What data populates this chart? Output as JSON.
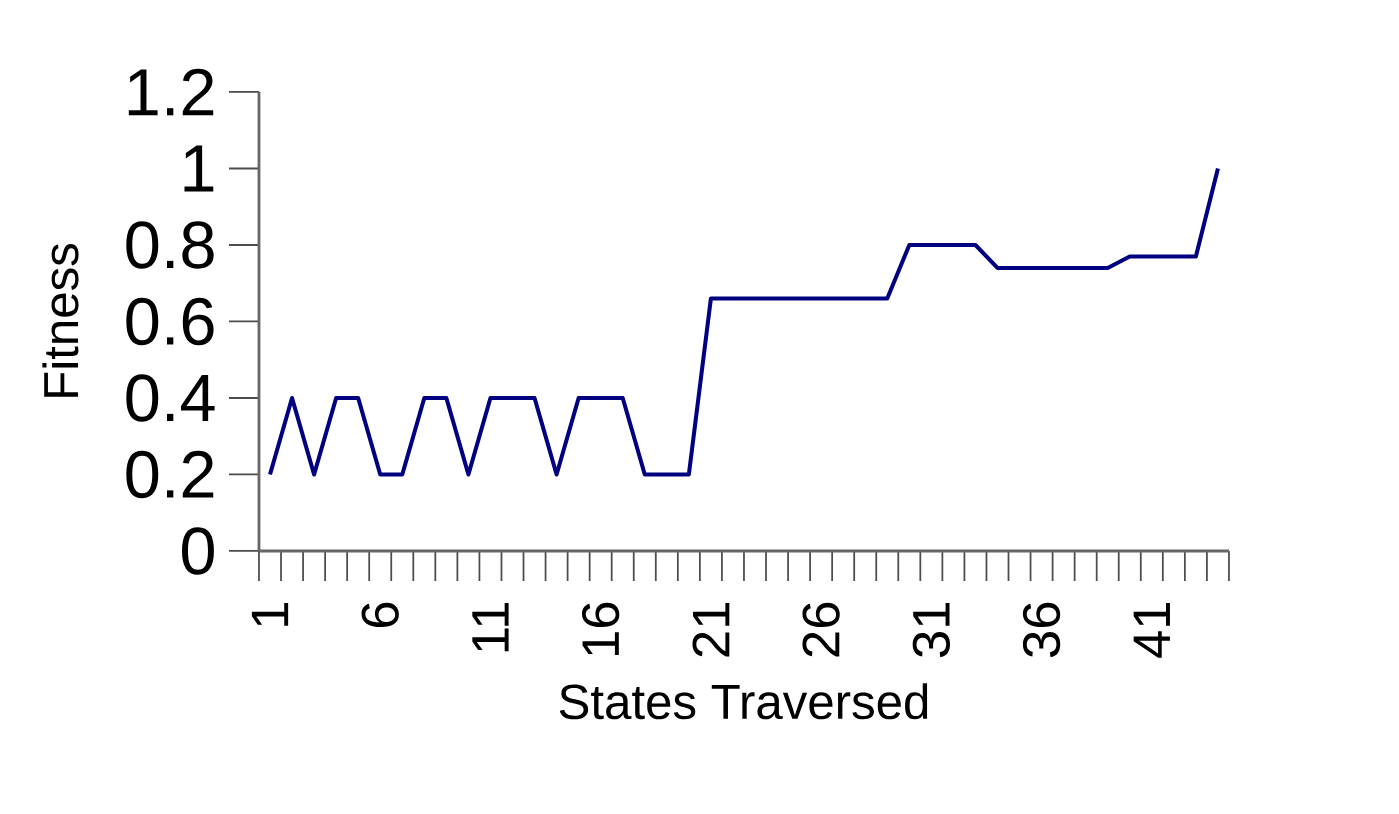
{
  "chart_data": {
    "type": "line",
    "xlabel": "States Traversed",
    "ylabel": "Fitness",
    "categories": [
      "1",
      null,
      null,
      null,
      null,
      "6",
      null,
      null,
      null,
      null,
      "11",
      null,
      null,
      null,
      null,
      "16",
      null,
      null,
      null,
      null,
      "21",
      null,
      null,
      null,
      null,
      "26",
      null,
      null,
      null,
      null,
      "31",
      null,
      null,
      null,
      null,
      "36",
      null,
      null,
      null,
      null,
      "41",
      null,
      null,
      null
    ],
    "series": [
      {
        "color": "#000080",
        "values": [
          0.2,
          0.4,
          0.2,
          0.4,
          0.4,
          0.2,
          0.2,
          0.4,
          0.4,
          0.2,
          0.4,
          0.4,
          0.4,
          0.2,
          0.4,
          0.4,
          0.4,
          0.2,
          0.2,
          0.2,
          0.66,
          0.66,
          0.66,
          0.66,
          0.66,
          0.66,
          0.66,
          0.66,
          0.66,
          0.8,
          0.8,
          0.8,
          0.8,
          0.74,
          0.74,
          0.74,
          0.74,
          0.74,
          0.74,
          0.77,
          0.77,
          0.77,
          0.77,
          1.0
        ]
      }
    ],
    "ylim": [
      0,
      1.2
    ],
    "yticks": [
      0,
      0.2,
      0.4,
      0.6,
      0.8,
      1,
      1.2
    ],
    "grid": false,
    "marker": "none",
    "line_style": "solid"
  }
}
